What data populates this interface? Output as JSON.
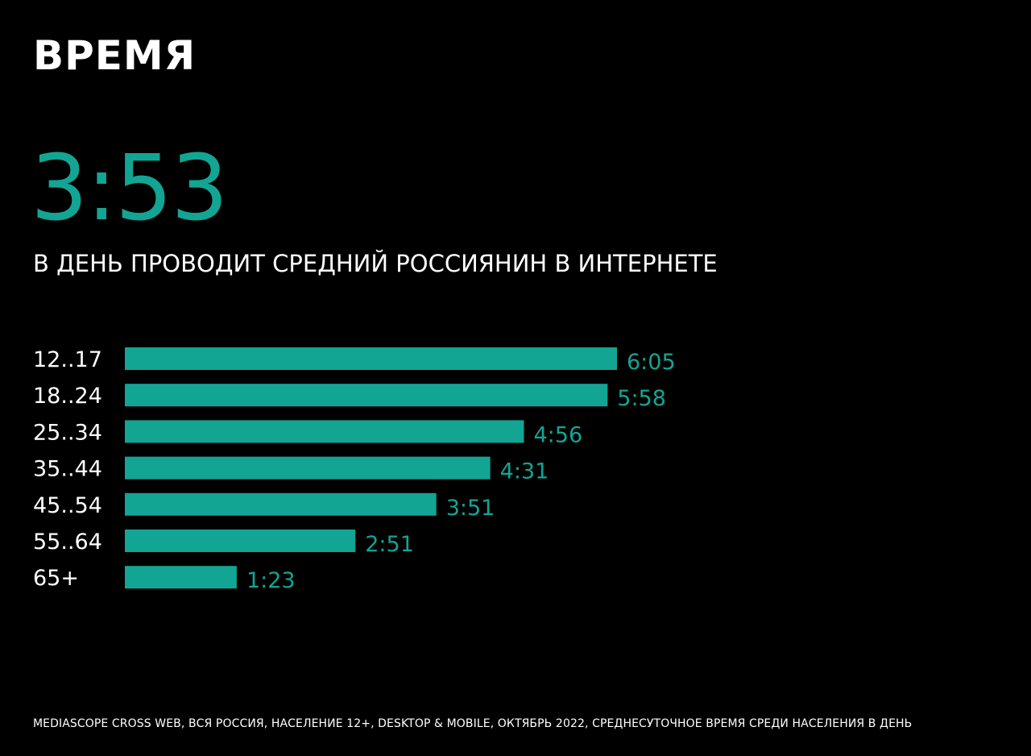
{
  "title": "ВРЕМЯ",
  "headline": {
    "value": "3:53",
    "caption": "В ДЕНЬ ПРОВОДИТ СРЕДНИЙ РОССИЯНИН В ИНТЕРНЕТЕ"
  },
  "colors": {
    "accent": "#12a594",
    "background": "#000000",
    "text": "#ffffff"
  },
  "chart_data": {
    "type": "bar",
    "orientation": "horizontal",
    "title": "",
    "xlabel": "",
    "ylabel": "",
    "grid": false,
    "categories": [
      "12..17",
      "18..24",
      "25..34",
      "35..44",
      "45..54",
      "55..64",
      "65+"
    ],
    "values": [
      365,
      358,
      296,
      271,
      231,
      171,
      83
    ],
    "value_unit": "minutes",
    "data_labels": [
      "6:05",
      "5:58",
      "4:56",
      "4:31",
      "3:51",
      "2:51",
      "1:23"
    ],
    "xlim": [
      0,
      365
    ]
  },
  "footnote": "MEDIASCOPE CROSS WEB, ВСЯ РОССИЯ, НАСЕЛЕНИЕ 12+, DESKTOP & MOBILE, ОКТЯБРЬ 2022, СРЕДНЕСУТОЧНОЕ ВРЕМЯ СРЕДИ НАСЕЛЕНИЯ В ДЕНЬ"
}
